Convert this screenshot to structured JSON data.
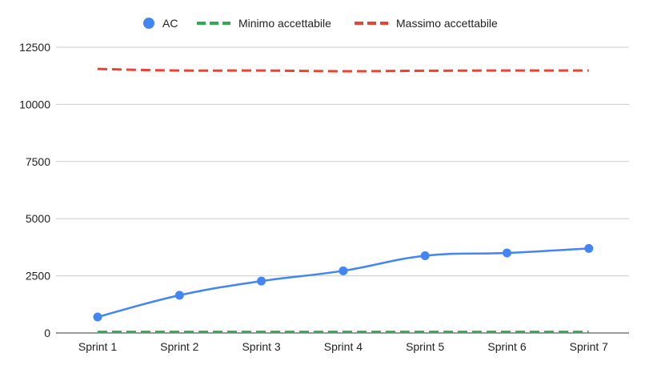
{
  "chart_data": {
    "type": "line",
    "title": "",
    "xlabel": "",
    "ylabel": "",
    "categories": [
      "Sprint 1",
      "Sprint 2",
      "Sprint 3",
      "Sprint 4",
      "Sprint 5",
      "Sprint 6",
      "Sprint 7"
    ],
    "ylim": [
      0,
      12500
    ],
    "yticks": [
      0,
      2500,
      5000,
      7500,
      10000,
      12500
    ],
    "grid": true,
    "legend": "top-center",
    "series": [
      {
        "name": "AC",
        "style": "solid-with-markers",
        "color": "#4285f4",
        "values": [
          700,
          1650,
          2270,
          2720,
          3380,
          3500,
          3700
        ]
      },
      {
        "name": "Minimo accettabile",
        "style": "dashed",
        "color": "#34a853",
        "values": [
          50,
          50,
          50,
          50,
          50,
          50,
          50
        ]
      },
      {
        "name": "Massimo accettabile",
        "style": "dashed",
        "color": "#ea4335",
        "values": [
          11550,
          11480,
          11480,
          11450,
          11470,
          11480,
          11480
        ]
      }
    ]
  }
}
